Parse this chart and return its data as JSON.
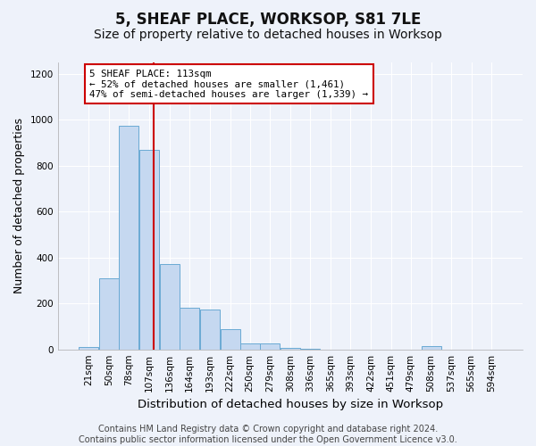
{
  "title": "5, SHEAF PLACE, WORKSOP, S81 7LE",
  "subtitle": "Size of property relative to detached houses in Worksop",
  "xlabel": "Distribution of detached houses by size in Worksop",
  "ylabel": "Number of detached properties",
  "footer_line1": "Contains HM Land Registry data © Crown copyright and database right 2024.",
  "footer_line2": "Contains public sector information licensed under the Open Government Licence v3.0.",
  "bar_labels": [
    "21sqm",
    "50sqm",
    "78sqm",
    "107sqm",
    "136sqm",
    "164sqm",
    "193sqm",
    "222sqm",
    "250sqm",
    "279sqm",
    "308sqm",
    "336sqm",
    "365sqm",
    "393sqm",
    "422sqm",
    "451sqm",
    "479sqm",
    "508sqm",
    "537sqm",
    "565sqm",
    "594sqm"
  ],
  "bar_values": [
    10,
    310,
    975,
    870,
    370,
    180,
    175,
    90,
    25,
    25,
    5,
    3,
    0,
    0,
    0,
    0,
    0,
    15,
    0,
    0,
    0
  ],
  "bar_color": "#c5d8f0",
  "bar_edge_color": "#6aaad4",
  "annotation_line1": "5 SHEAF PLACE: 113sqm",
  "annotation_line2": "← 52% of detached houses are smaller (1,461)",
  "annotation_line3": "47% of semi-detached houses are larger (1,339) →",
  "annotation_box_color": "#ffffff",
  "annotation_box_edge_color": "#cc0000",
  "vline_x": 113,
  "vline_color": "#cc0000",
  "ylim": [
    0,
    1250
  ],
  "yticks": [
    0,
    200,
    400,
    600,
    800,
    1000,
    1200
  ],
  "background_color": "#eef2fa",
  "grid_color": "#ffffff",
  "title_fontsize": 12,
  "subtitle_fontsize": 10,
  "xlabel_fontsize": 9.5,
  "ylabel_fontsize": 9,
  "tick_fontsize": 7.5,
  "footer_fontsize": 7,
  "bin_width": 29
}
